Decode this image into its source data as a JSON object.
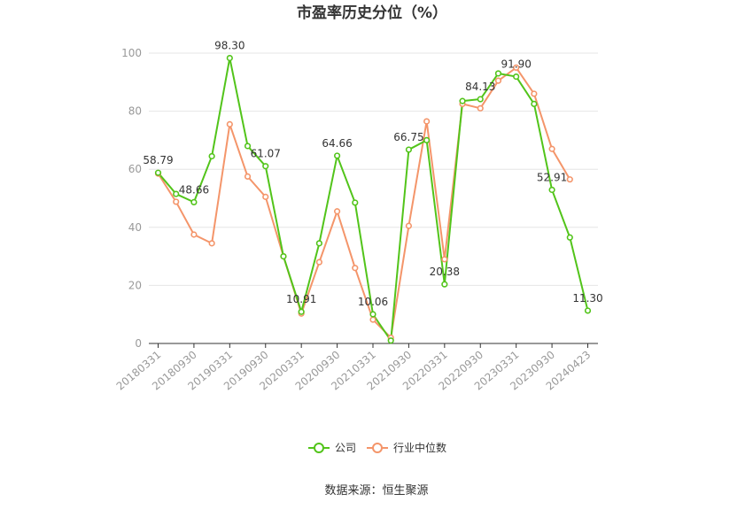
{
  "chart_data": {
    "type": "line",
    "title": "市盈率历史分位（%）",
    "ylim": [
      0,
      100
    ],
    "yticks": [
      0,
      20,
      40,
      60,
      80,
      100
    ],
    "x_tick_labels": [
      "20180331",
      "20180930",
      "20190331",
      "20190930",
      "20200331",
      "20200930",
      "20210331",
      "20210930",
      "20220331",
      "20220930",
      "20230331",
      "20230930",
      "20240423"
    ],
    "x": [
      "20180331",
      "20180630",
      "20180930",
      "20181231",
      "20190331",
      "20190630",
      "20190930",
      "20191231",
      "20200331",
      "20200630",
      "20200930",
      "20201231",
      "20210331",
      "20210630",
      "20210930",
      "20211231",
      "20220331",
      "20220630",
      "20220930",
      "20221231",
      "20230331",
      "20230630",
      "20230930",
      "20231231",
      "20240423"
    ],
    "series": [
      {
        "name": "公司",
        "color": "#52c41a",
        "values": [
          58.79,
          51.5,
          48.66,
          64.5,
          98.3,
          68.0,
          61.07,
          30.0,
          10.91,
          34.5,
          64.66,
          48.5,
          10.06,
          1.0,
          66.75,
          70.0,
          20.38,
          83.5,
          84.13,
          93.0,
          91.9,
          82.5,
          52.91,
          36.5,
          11.3
        ]
      },
      {
        "name": "行业中位数",
        "color": "#f4956a",
        "values": [
          58.5,
          48.8,
          37.5,
          34.5,
          75.5,
          57.5,
          50.5,
          30.0,
          10.3,
          28.0,
          45.5,
          26.0,
          8.2,
          2.0,
          40.5,
          76.5,
          29.0,
          82.5,
          81.0,
          90.5,
          95.0,
          86.0,
          67.0,
          56.5,
          null
        ]
      }
    ],
    "data_labels": [
      {
        "series": 0,
        "index": 0,
        "text": "58.79"
      },
      {
        "series": 0,
        "index": 2,
        "text": "48.66"
      },
      {
        "series": 0,
        "index": 4,
        "text": "98.30"
      },
      {
        "series": 0,
        "index": 6,
        "text": "61.07"
      },
      {
        "series": 0,
        "index": 8,
        "text": "10.91"
      },
      {
        "series": 0,
        "index": 10,
        "text": "64.66"
      },
      {
        "series": 0,
        "index": 12,
        "text": "10.06"
      },
      {
        "series": 0,
        "index": 14,
        "text": "66.75"
      },
      {
        "series": 0,
        "index": 16,
        "text": "20.38"
      },
      {
        "series": 0,
        "index": 18,
        "text": "84.13"
      },
      {
        "series": 0,
        "index": 20,
        "text": "91.90"
      },
      {
        "series": 0,
        "index": 22,
        "text": "52.91"
      },
      {
        "series": 0,
        "index": 24,
        "text": "11.30"
      }
    ],
    "legend": [
      "公司",
      "行业中位数"
    ],
    "legend_position": "bottom",
    "grid": true
  },
  "source": "数据来源：恒生聚源"
}
